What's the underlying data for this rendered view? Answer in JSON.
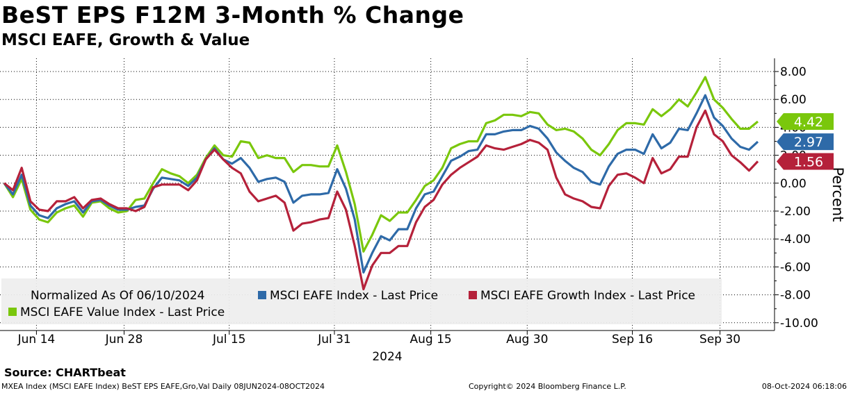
{
  "title": "BeST EPS F12M 3-Month % Change",
  "subtitle": "MSCI EAFE, Growth & Value",
  "source": "Source:  CHARTbeat",
  "footer": {
    "left": "MXEA Index (MSCI EAFE Index) BeST EPS EAFE,Gro,Val  Daily 08JUN2024-08OCT2024",
    "center": "Copyright© 2024 Bloomberg Finance L.P.",
    "right": "08-Oct-2024 06:18:06"
  },
  "chart_data": {
    "type": "line",
    "title": "BeST EPS F12M 3-Month % Change",
    "ylabel": "Percent",
    "xlabel": "2024",
    "ylim": [
      -10,
      8
    ],
    "grid": true,
    "y_ticks": [
      8,
      6,
      4,
      2,
      0,
      -2,
      -4,
      -6,
      -8,
      -10
    ],
    "y_tick_labels": [
      "8.00",
      "6.00",
      "4.00",
      "2.00",
      "0.00",
      "-2.00",
      "-4.00",
      "-6.00",
      "-8.00",
      "-10.00"
    ],
    "x_ticks": [
      {
        "label": "Jun 14",
        "index": 4
      },
      {
        "label": "Jun 28",
        "index": 14
      },
      {
        "label": "Jul 15",
        "index": 26
      },
      {
        "label": "Jul 31",
        "index": 38
      },
      {
        "label": "Aug 15",
        "index": 49
      },
      {
        "label": "Aug 30",
        "index": 60
      },
      {
        "label": "Sep 16",
        "index": 72
      },
      {
        "label": "Sep 30",
        "index": 82
      }
    ],
    "x_year_label": "2024",
    "legend_note": "Normalized As Of 06/10/2024",
    "series": [
      {
        "name": "MSCI EAFE Index - Last Price",
        "color": "#2e6aa8",
        "last_label": "2.97",
        "values": [
          0.0,
          -0.8,
          0.6,
          -1.6,
          -2.3,
          -2.5,
          -1.8,
          -1.5,
          -1.3,
          -2.1,
          -1.3,
          -1.2,
          -1.6,
          -1.9,
          -1.9,
          -1.7,
          -1.6,
          -0.4,
          0.4,
          0.3,
          0.2,
          -0.2,
          0.4,
          1.7,
          2.5,
          1.7,
          1.4,
          1.8,
          1.1,
          0.1,
          0.3,
          0.4,
          0.1,
          -1.4,
          -0.9,
          -0.8,
          -0.8,
          -0.7,
          1.0,
          -0.4,
          -2.6,
          -6.4,
          -5.0,
          -3.8,
          -4.1,
          -3.3,
          -3.3,
          -1.8,
          -0.8,
          -0.6,
          0.5,
          1.6,
          1.9,
          2.3,
          2.4,
          3.5,
          3.5,
          3.7,
          3.8,
          3.8,
          4.1,
          3.9,
          3.2,
          2.2,
          1.6,
          1.1,
          0.8,
          0.1,
          -0.1,
          1.2,
          2.1,
          2.4,
          2.4,
          2.1,
          3.5,
          2.5,
          2.9,
          3.9,
          3.8,
          5.0,
          6.3,
          4.7,
          4.1,
          3.2,
          2.6,
          2.4,
          2.97
        ]
      },
      {
        "name": "MSCI EAFE Growth Index - Last Price",
        "color": "#b5213a",
        "last_label": "1.56",
        "values": [
          0.0,
          -0.5,
          1.1,
          -1.3,
          -1.9,
          -2.0,
          -1.3,
          -1.3,
          -1.0,
          -1.8,
          -1.2,
          -1.1,
          -1.5,
          -1.8,
          -1.8,
          -2.0,
          -1.7,
          -0.3,
          -0.1,
          -0.1,
          -0.1,
          -0.5,
          0.2,
          1.7,
          2.4,
          1.7,
          1.1,
          0.7,
          -0.6,
          -1.3,
          -1.1,
          -0.9,
          -1.4,
          -3.4,
          -2.9,
          -2.8,
          -2.6,
          -2.5,
          -0.6,
          -1.9,
          -4.5,
          -7.6,
          -5.9,
          -5.0,
          -5.0,
          -4.5,
          -4.5,
          -2.8,
          -1.7,
          -1.2,
          -0.1,
          0.6,
          1.1,
          1.5,
          1.9,
          2.7,
          2.5,
          2.4,
          2.6,
          2.8,
          3.1,
          2.9,
          2.4,
          0.4,
          -0.8,
          -1.1,
          -1.3,
          -1.7,
          -1.8,
          -0.2,
          0.6,
          0.7,
          0.4,
          0.0,
          1.8,
          0.7,
          1.0,
          1.9,
          1.9,
          4.0,
          5.2,
          3.5,
          3.0,
          2.0,
          1.5,
          0.9,
          1.56
        ]
      },
      {
        "name": "MSCI EAFE Value Index - Last Price",
        "color": "#7ac70c",
        "last_label": "4.42",
        "values": [
          0.0,
          -1.0,
          0.3,
          -1.9,
          -2.6,
          -2.8,
          -2.1,
          -1.8,
          -1.6,
          -2.4,
          -1.4,
          -1.3,
          -1.8,
          -2.1,
          -2.0,
          -1.2,
          -1.1,
          0.0,
          1.0,
          0.7,
          0.5,
          0.0,
          0.6,
          1.8,
          2.7,
          2.0,
          1.9,
          3.0,
          2.9,
          1.8,
          2.0,
          1.8,
          1.8,
          0.8,
          1.3,
          1.3,
          1.2,
          1.2,
          2.7,
          0.8,
          -1.5,
          -4.9,
          -3.7,
          -2.3,
          -2.7,
          -2.1,
          -2.1,
          -1.2,
          -0.2,
          0.2,
          1.1,
          2.5,
          2.8,
          3.0,
          3.0,
          4.3,
          4.5,
          4.9,
          4.9,
          4.8,
          5.1,
          5.0,
          4.2,
          3.8,
          3.9,
          3.7,
          3.2,
          2.4,
          2.0,
          2.8,
          3.8,
          4.3,
          4.3,
          4.2,
          5.3,
          4.8,
          5.3,
          6.0,
          5.5,
          6.5,
          7.6,
          6.0,
          5.4,
          4.6,
          3.9,
          3.9,
          4.42
        ]
      }
    ]
  }
}
